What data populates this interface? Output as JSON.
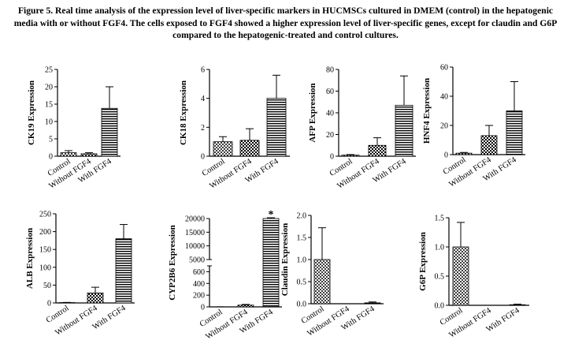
{
  "caption": "Figure 5. Real time analysis of the expression level of liver-specific markers in HUCMSCs cultured in DMEM (control) in the hepatogenic media with or without FGF4. The cells exposed to FGF4 showed a higher expression level of liver-specific genes, except for claudin and G6P compared to the hepatogenic-treated and control cultures.",
  "chart_data": [
    {
      "type": "bar",
      "ylabel": "CK19 Expression",
      "categories": [
        "Control",
        "Without FGF4",
        "With FGF4"
      ],
      "values": [
        1.0,
        0.7,
        13.8
      ],
      "errors": [
        0.6,
        0.3,
        6.2
      ],
      "patterns": [
        "dots",
        "checker",
        "hstripes"
      ],
      "ylim": [
        0,
        25
      ],
      "yticks": [
        "0",
        "5",
        "10",
        "15",
        "20",
        "25"
      ]
    },
    {
      "type": "bar",
      "ylabel": "CK18 Expression",
      "categories": [
        "Control",
        "Without FGF4",
        "With FGF4"
      ],
      "values": [
        1.0,
        1.1,
        4.0
      ],
      "errors": [
        0.35,
        0.8,
        1.6
      ],
      "patterns": [
        "dots",
        "checker",
        "hstripes"
      ],
      "ylim": [
        0,
        6
      ],
      "yticks": [
        "0",
        "2",
        "4",
        "6"
      ]
    },
    {
      "type": "bar",
      "ylabel": "AFP Expression",
      "categories": [
        "Control",
        "Without FGF4",
        "With FGF4"
      ],
      "values": [
        1,
        10,
        47
      ],
      "errors": [
        0.5,
        7,
        27
      ],
      "patterns": [
        "dots",
        "checker",
        "hstripes"
      ],
      "ylim": [
        0,
        80
      ],
      "yticks": [
        "0",
        "20",
        "40",
        "60",
        "80"
      ]
    },
    {
      "type": "bar",
      "ylabel": "HNF4 Expression",
      "categories": [
        "Control",
        "Without FGF4",
        "With FGF4"
      ],
      "values": [
        1,
        13,
        30
      ],
      "errors": [
        0.5,
        7,
        20
      ],
      "patterns": [
        "dots",
        "checker",
        "hstripes"
      ],
      "ylim": [
        0,
        60
      ],
      "yticks": [
        "0",
        "20",
        "40",
        "60"
      ]
    },
    {
      "type": "bar",
      "ylabel": "ALB Expression",
      "categories": [
        "Control",
        "Without FGF4",
        "With FGF4"
      ],
      "values": [
        1,
        28,
        180
      ],
      "errors": [
        0.5,
        16,
        40
      ],
      "patterns": [
        "dots",
        "checker",
        "hstripes"
      ],
      "ylim": [
        0,
        250
      ],
      "yticks": [
        "0",
        "50",
        "100",
        "150",
        "200",
        "250"
      ]
    },
    {
      "type": "bar",
      "ylabel": "CYP2B6 Expression",
      "categories": [
        "Control",
        "Without FGF4",
        "With FGF4"
      ],
      "values": [
        1,
        30,
        20000
      ],
      "errors": [
        0.5,
        12,
        300
      ],
      "patterns": [
        "dots",
        "checker",
        "hstripes"
      ],
      "broken_axis": true,
      "ylim_lower": [
        0,
        700
      ],
      "ylim_upper": [
        5000,
        20000
      ],
      "yticks_lower": [
        "0",
        "200",
        "400",
        "600"
      ],
      "yticks_upper": [
        "5000",
        "10000",
        "15000",
        "20000"
      ],
      "annotation": "*"
    },
    {
      "type": "bar",
      "ylabel": "Claudin Expression",
      "categories": [
        "Control",
        "Without FGF4",
        "With FGF4"
      ],
      "values": [
        1.0,
        0.0,
        0.02
      ],
      "errors": [
        0.72,
        0.0,
        0.02
      ],
      "patterns": [
        "dots",
        "checker",
        "hstripes"
      ],
      "ylim": [
        0,
        2.0
      ],
      "yticks": [
        "0.0",
        "0.5",
        "1.0",
        "1.5",
        "2.0"
      ]
    },
    {
      "type": "bar",
      "ylabel": "G6P Expression",
      "categories": [
        "Control",
        "Without FGF4",
        "With FGF4"
      ],
      "values": [
        1.0,
        0.0,
        0.01
      ],
      "errors": [
        0.42,
        0.0,
        0.01
      ],
      "patterns": [
        "dots",
        "checker",
        "hstripes"
      ],
      "ylim": [
        0,
        1.5
      ],
      "yticks": [
        "0.0",
        "0.5",
        "1.0",
        "1.5"
      ]
    }
  ]
}
